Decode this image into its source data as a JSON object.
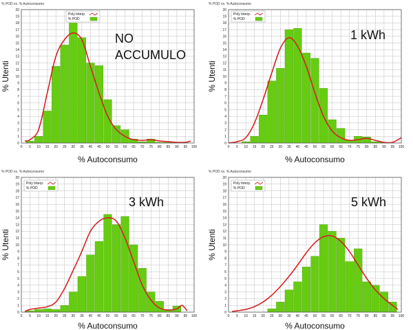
{
  "colors": {
    "bar": "#66cc11",
    "bar_edge": "#4a9a0a",
    "curve": "#d62020",
    "grid": "#bdbdbd",
    "axis": "#555555"
  },
  "chart_data": [
    {
      "type": "bar",
      "top_label": "% POD vs. % Autoconsumo",
      "xlabel": "% Autoconsumo",
      "ylabel": "% Utenti",
      "annotation": [
        "NO",
        "ACCUMULO"
      ],
      "legend": [
        "Poly Interp.",
        "% POD"
      ],
      "xlim": [
        0,
        100
      ],
      "ylim": [
        0,
        20
      ],
      "xticks": [
        0,
        5,
        10,
        15,
        20,
        25,
        30,
        35,
        40,
        45,
        50,
        55,
        60,
        65,
        70,
        75,
        80,
        85,
        90,
        95,
        100
      ],
      "yticks": [
        0,
        1,
        2,
        3,
        4,
        5,
        6,
        7,
        8,
        9,
        10,
        11,
        12,
        13,
        14,
        15,
        16,
        17,
        18,
        19,
        20
      ],
      "bin_width": 5,
      "bin_starts": [
        2.5,
        7.5,
        12.5,
        17.5,
        22.5,
        27.5,
        32.5,
        37.5,
        42.5,
        47.5,
        52.5,
        57.5,
        62.5,
        67.5,
        72.5,
        77.5,
        82.5,
        87.5,
        92.5,
        97.5
      ],
      "values": [
        0.3,
        1.0,
        4.8,
        11.5,
        14.7,
        18.0,
        15.8,
        12.0,
        11.6,
        6.5,
        2.6,
        2.0,
        0.6,
        0.2,
        0.6,
        0.1,
        0.1,
        0.1,
        0,
        0
      ],
      "curve": {
        "name": "Poly Interp.",
        "x": [
          2,
          5,
          10,
          15,
          20,
          25,
          30,
          35,
          40,
          45,
          50,
          55,
          60,
          65,
          70,
          75,
          80,
          85,
          90,
          95,
          98
        ],
        "y": [
          0.3,
          0.5,
          2.0,
          7.5,
          13.0,
          15.5,
          16.5,
          15.5,
          11.5,
          7.5,
          4.0,
          2.0,
          1.0,
          0.5,
          0.4,
          0.5,
          0.3,
          0.2,
          0.1,
          0.1,
          0.3
        ]
      }
    },
    {
      "type": "bar",
      "top_label": "% POD vs. % Autoconsumo",
      "xlabel": "% Autoconsumo",
      "ylabel": "% Utenti",
      "annotation": [
        "1 kWh"
      ],
      "legend": [
        "Poly Interp.",
        "% POD"
      ],
      "xlim": [
        0,
        100
      ],
      "ylim": [
        0,
        20
      ],
      "xticks": [
        0,
        5,
        10,
        15,
        20,
        25,
        30,
        35,
        40,
        45,
        50,
        55,
        60,
        65,
        70,
        75,
        80,
        85,
        90,
        95,
        100
      ],
      "yticks": [
        0,
        1,
        2,
        3,
        4,
        5,
        6,
        7,
        8,
        9,
        10,
        11,
        12,
        13,
        14,
        15,
        16,
        17,
        18,
        19,
        20
      ],
      "bin_width": 5,
      "bin_starts": [
        2.5,
        7.5,
        12.5,
        17.5,
        22.5,
        27.5,
        32.5,
        37.5,
        42.5,
        47.5,
        52.5,
        57.5,
        62.5,
        67.5,
        72.5,
        77.5,
        82.5,
        87.5,
        92.5,
        97.5
      ],
      "values": [
        0,
        0.2,
        1.0,
        4.2,
        9.3,
        11.2,
        17.0,
        17.2,
        13.5,
        12.7,
        8.2,
        3.5,
        2.2,
        0.4,
        1.0,
        0.9,
        0.2,
        0.1,
        0,
        0
      ],
      "curve": {
        "name": "Poly Interp.",
        "x": [
          0,
          5,
          10,
          15,
          20,
          25,
          30,
          35,
          40,
          45,
          50,
          55,
          60,
          65,
          70,
          75,
          80,
          85,
          90,
          95,
          100
        ],
        "y": [
          0,
          0.2,
          0.8,
          3.0,
          6.5,
          10.5,
          14.2,
          15.8,
          14.5,
          11.5,
          7.5,
          4.0,
          1.8,
          0.8,
          0.4,
          0.5,
          0.7,
          0.4,
          0.1,
          0.1,
          0.8
        ]
      }
    },
    {
      "type": "bar",
      "top_label": "% POD vs. % Autoconsumo",
      "xlabel": "% Autoconsumo",
      "ylabel": "% Utenti",
      "annotation": [
        "3 kWh"
      ],
      "legend": [
        "Poly Interp.",
        "% POD"
      ],
      "xlim": [
        0,
        100
      ],
      "ylim": [
        0,
        20
      ],
      "xticks": [
        0,
        5,
        10,
        15,
        20,
        25,
        30,
        35,
        40,
        45,
        50,
        55,
        60,
        65,
        70,
        75,
        80,
        85,
        90,
        95,
        100
      ],
      "yticks": [
        0,
        1,
        2,
        3,
        4,
        5,
        6,
        7,
        8,
        9,
        10,
        11,
        12,
        13,
        14,
        15,
        16,
        17,
        18,
        19,
        20
      ],
      "bin_width": 5,
      "bin_starts": [
        2.5,
        7.5,
        12.5,
        17.5,
        22.5,
        27.5,
        32.5,
        37.5,
        42.5,
        47.5,
        52.5,
        57.5,
        62.5,
        67.5,
        72.5,
        77.5,
        82.5,
        87.5,
        92.5,
        97.5
      ],
      "values": [
        0.2,
        0.4,
        0.5,
        0.4,
        1.0,
        3.0,
        5.3,
        8.5,
        10.5,
        14.5,
        13.0,
        14.2,
        10.0,
        6.5,
        3.0,
        1.6,
        0.4,
        0.9,
        0,
        0
      ],
      "curve": {
        "name": "Poly Interp.",
        "x": [
          2,
          5,
          10,
          15,
          20,
          25,
          30,
          35,
          40,
          45,
          50,
          55,
          60,
          65,
          70,
          75,
          80,
          85,
          90,
          93,
          96
        ],
        "y": [
          0.1,
          0.4,
          0.6,
          0.8,
          1.5,
          3.5,
          6.2,
          9.0,
          12.0,
          13.5,
          14.0,
          13.5,
          11.0,
          7.5,
          4.0,
          1.8,
          0.6,
          0.3,
          0.5,
          1.0,
          0.2
        ]
      }
    },
    {
      "type": "bar",
      "top_label": "% POD vs. % Autoconsumo",
      "xlabel": "% Autoconsumo",
      "ylabel": "% Utenti",
      "annotation": [
        "5 kWh"
      ],
      "legend": [
        "Poly Interp.",
        "% POD"
      ],
      "xlim": [
        0,
        100
      ],
      "ylim": [
        0,
        20
      ],
      "xticks": [
        0,
        5,
        10,
        15,
        20,
        25,
        30,
        35,
        40,
        45,
        50,
        55,
        60,
        65,
        70,
        75,
        80,
        85,
        90,
        95,
        100
      ],
      "yticks": [
        0,
        1,
        2,
        3,
        4,
        5,
        6,
        7,
        8,
        9,
        10,
        11,
        12,
        13,
        14,
        15,
        16,
        17,
        18,
        19,
        20
      ],
      "bin_width": 5,
      "bin_starts": [
        2.5,
        7.5,
        12.5,
        17.5,
        22.5,
        27.5,
        32.5,
        37.5,
        42.5,
        47.5,
        52.5,
        57.5,
        62.5,
        67.5,
        72.5,
        77.5,
        82.5,
        87.5,
        92.5,
        97.5
      ],
      "values": [
        0,
        0,
        0,
        0,
        0.5,
        1.5,
        3.3,
        4.5,
        6.7,
        8.3,
        13.0,
        12.0,
        11.0,
        7.5,
        9.4,
        4.5,
        4.0,
        3.0,
        1.5,
        0
      ],
      "curve": {
        "name": "Poly Interp.",
        "x": [
          2,
          5,
          10,
          15,
          20,
          25,
          30,
          35,
          40,
          45,
          50,
          55,
          60,
          65,
          70,
          75,
          80,
          85,
          90,
          95,
          98
        ],
        "y": [
          0.1,
          0.2,
          0.4,
          0.8,
          1.5,
          2.5,
          3.8,
          5.3,
          7.0,
          8.8,
          10.3,
          11.2,
          11.3,
          10.5,
          9.0,
          7.0,
          5.0,
          3.3,
          2.0,
          1.0,
          0.4
        ]
      }
    }
  ]
}
